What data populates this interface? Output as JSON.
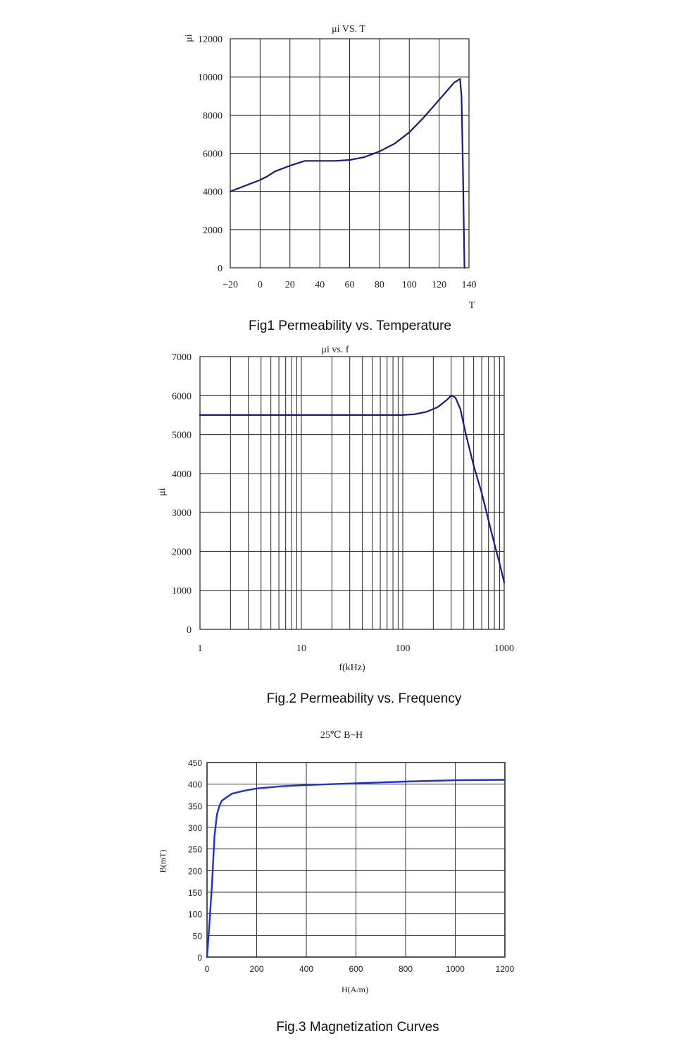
{
  "charts": [
    {
      "title": "μi VS. T",
      "ylabel": "μi",
      "xlabel": "T",
      "caption": "Fig1 Permeability vs. Temperature"
    },
    {
      "title": "μi vs. f",
      "ylabel": "μi",
      "xlabel": "f(kHz)",
      "caption": "Fig.2 Permeability vs. Frequency"
    },
    {
      "title": "25℃ B~H",
      "ylabel": "B(mT)",
      "xlabel": "H(A/m)",
      "caption": "Fig.3 Magnetization Curves"
    }
  ],
  "chart_data": [
    {
      "type": "line",
      "title": "μi VS. T",
      "xlabel": "T",
      "ylabel": "μi",
      "xlim": [
        -20,
        140
      ],
      "ylim": [
        0,
        12000
      ],
      "xticks": [
        -20,
        0,
        20,
        40,
        60,
        80,
        100,
        120,
        140
      ],
      "yticks": [
        0,
        2000,
        4000,
        6000,
        8000,
        10000,
        12000
      ],
      "grid": true,
      "color": "#1a1a80",
      "series": [
        {
          "x": [
            -20,
            -10,
            0,
            5,
            10,
            20,
            30,
            40,
            50,
            60,
            70,
            80,
            90,
            100,
            110,
            120,
            130,
            134,
            135,
            136,
            137
          ],
          "y": [
            4000,
            4300,
            4600,
            4800,
            5050,
            5350,
            5600,
            5600,
            5600,
            5650,
            5800,
            6100,
            6500,
            7100,
            7900,
            8800,
            9700,
            9900,
            9000,
            5000,
            0
          ]
        }
      ]
    },
    {
      "type": "line",
      "title": "μi vs. f",
      "xlabel": "f(kHz)",
      "ylabel": "μi",
      "xscale": "log",
      "xlim": [
        1,
        1000
      ],
      "ylim": [
        0,
        7000
      ],
      "xticks": [
        1,
        10,
        100,
        1000
      ],
      "yticks": [
        0,
        1000,
        2000,
        3000,
        4000,
        5000,
        6000,
        7000
      ],
      "grid": true,
      "color": "#1a1a80",
      "series": [
        {
          "x": [
            1,
            10,
            100,
            130,
            170,
            220,
            270,
            300,
            330,
            370,
            420,
            500,
            600,
            700,
            800,
            900,
            1000
          ],
          "y": [
            5500,
            5500,
            5500,
            5520,
            5580,
            5700,
            5880,
            6000,
            5950,
            5650,
            5000,
            4200,
            3500,
            2800,
            2200,
            1700,
            1200
          ]
        }
      ]
    },
    {
      "type": "line",
      "title": "25℃ B~H",
      "xlabel": "H(A/m)",
      "ylabel": "B(mT)",
      "xlim": [
        0,
        1200
      ],
      "ylim": [
        0,
        450
      ],
      "xticks": [
        0,
        200,
        400,
        600,
        800,
        1000,
        1200
      ],
      "yticks": [
        0,
        50,
        100,
        150,
        200,
        250,
        300,
        350,
        400,
        450
      ],
      "grid": true,
      "color": "#1f2ee0",
      "series": [
        {
          "x": [
            0,
            5,
            10,
            20,
            30,
            40,
            50,
            60,
            80,
            100,
            150,
            200,
            300,
            400,
            600,
            800,
            1000,
            1200
          ],
          "y": [
            0,
            40,
            80,
            170,
            280,
            330,
            350,
            362,
            370,
            378,
            385,
            390,
            395,
            398,
            402,
            406,
            409,
            410
          ]
        }
      ]
    }
  ]
}
